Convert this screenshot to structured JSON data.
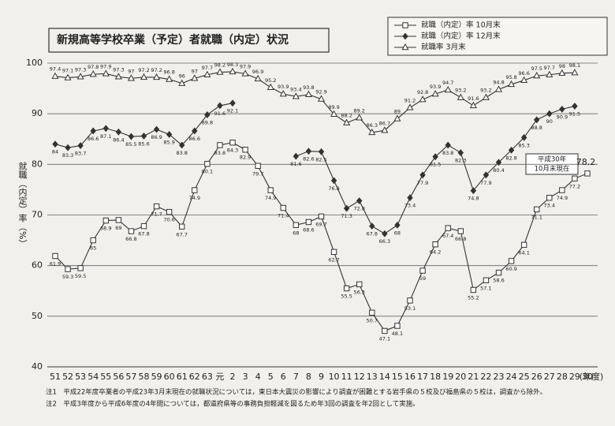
{
  "chart_data": {
    "type": "line",
    "title": "新規高等学校卒業（予定）者就職（内定）状況",
    "y_label": "就職（内定）率（%）",
    "x_label": "(年度)",
    "categories": [
      "51",
      "52",
      "53",
      "54",
      "55",
      "56",
      "57",
      "58",
      "59",
      "60",
      "61",
      "62",
      "63",
      "元",
      "2",
      "3",
      "4",
      "5",
      "6",
      "7",
      "8",
      "9",
      "10",
      "11",
      "12",
      "13",
      "14",
      "15",
      "16",
      "17",
      "18",
      "19",
      "20",
      "21",
      "22",
      "23",
      "24",
      "25",
      "26",
      "27",
      "28",
      "29",
      "30"
    ],
    "series": [
      {
        "name": "就職（内定）率 10月末",
        "marker": "square",
        "color": "#333333",
        "values": [
          61.9,
          59.3,
          59.5,
          65.0,
          68.9,
          69.0,
          66.8,
          67.8,
          71.7,
          70.6,
          67.7,
          74.9,
          80.1,
          83.8,
          84.3,
          82.9,
          79.7,
          74.9,
          71.4,
          68.0,
          68.6,
          69.7,
          62.7,
          55.5,
          56.3,
          50.7,
          47.1,
          48.1,
          53.1,
          59.0,
          64.2,
          67.4,
          66.8,
          55.2,
          57.1,
          58.6,
          60.9,
          64.1,
          71.1,
          73.4,
          74.9,
          77.2,
          78.2
        ]
      },
      {
        "name": "就職（内定）率 12月末",
        "marker": "diamond",
        "color": "#333333",
        "values": [
          84.0,
          83.3,
          83.7,
          86.6,
          87.1,
          86.4,
          85.5,
          85.6,
          86.9,
          85.9,
          83.8,
          86.6,
          89.8,
          91.6,
          92.1,
          null,
          null,
          null,
          null,
          81.6,
          82.6,
          82.5,
          76.8,
          71.3,
          72.8,
          67.8,
          66.3,
          68.0,
          73.4,
          77.9,
          81.5,
          83.8,
          82.3,
          74.8,
          77.9,
          80.4,
          82.8,
          85.3,
          88.8,
          90.0,
          90.9,
          91.5,
          null
        ]
      },
      {
        "name": "就職率 3月末",
        "marker": "triangle",
        "color": "#333333",
        "values": [
          97.4,
          97.1,
          97.3,
          97.8,
          97.9,
          97.3,
          97.0,
          97.2,
          97.2,
          96.8,
          96.0,
          97.0,
          97.7,
          98.2,
          98.3,
          97.9,
          96.9,
          95.2,
          93.9,
          93.4,
          93.8,
          92.9,
          89.9,
          88.2,
          89.2,
          86.3,
          86.7,
          89.0,
          91.2,
          92.8,
          93.9,
          94.7,
          93.2,
          91.6,
          93.2,
          94.8,
          95.8,
          96.6,
          97.5,
          97.7,
          98.0,
          98.1,
          null
        ]
      }
    ],
    "ylim": [
      40,
      100
    ],
    "yticks": [
      40,
      50,
      60,
      70,
      80,
      90,
      100
    ],
    "grid": true,
    "legend": "top-right",
    "annotation": [
      "平成30年",
      "10月末現在"
    ],
    "notes": [
      "注1　平成22年度卒業者の平成23年3月末現在の就職状況については，東日本大震災の影響により調査が困難とする岩手県の５校及び福島県の５校は，調査から除外。",
      "注2　平成3年度から平成6年度の4年間については，都道府県等の事務負担軽減を図るため年3回の調査を年2回として実施。"
    ]
  }
}
